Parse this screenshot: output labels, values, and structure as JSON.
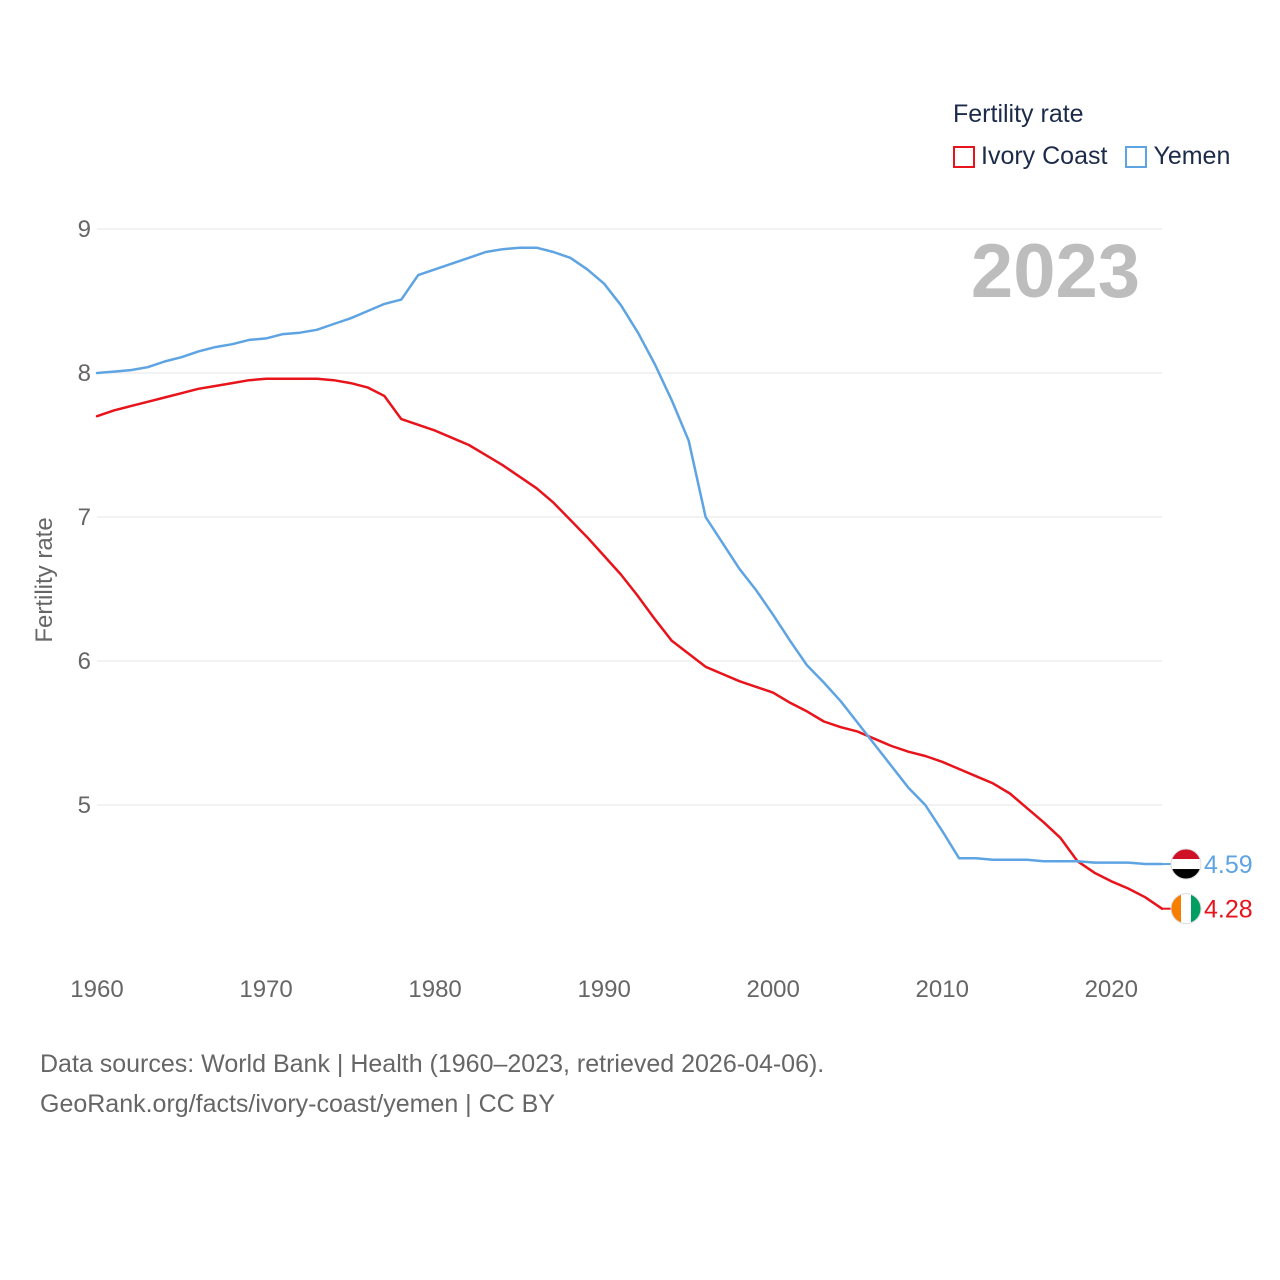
{
  "legend": {
    "title": "Fertility rate",
    "items": [
      {
        "label": "Ivory Coast",
        "color": "#e8141c"
      },
      {
        "label": "Yemen",
        "color": "#5ea4e3"
      }
    ]
  },
  "year_label": "2023",
  "footer": {
    "line1": "Data sources: World Bank | Health (1960–2023, retrieved 2026-04-06).",
    "line2": "GeoRank.org/facts/ivory-coast/yemen | CC BY"
  },
  "colors": {
    "ivory_coast": "#e8141c",
    "yemen": "#5ea4e3",
    "grid": "#e6e6e6",
    "axis_text": "#666666"
  },
  "chart_data": {
    "type": "line",
    "title": "",
    "xlabel": "",
    "ylabel": "Fertility rate",
    "xlim": [
      1960,
      2023
    ],
    "ylim": [
      4,
      9
    ],
    "x_ticks": [
      "1960",
      "1970",
      "1980",
      "1990",
      "2000",
      "2010",
      "2020"
    ],
    "y_ticks": [
      "5",
      "6",
      "7",
      "8",
      "9"
    ],
    "x": [
      1960,
      1961,
      1962,
      1963,
      1964,
      1965,
      1966,
      1967,
      1968,
      1969,
      1970,
      1971,
      1972,
      1973,
      1974,
      1975,
      1976,
      1977,
      1978,
      1979,
      1980,
      1981,
      1982,
      1983,
      1984,
      1985,
      1986,
      1987,
      1988,
      1989,
      1990,
      1991,
      1992,
      1993,
      1994,
      1995,
      1996,
      1997,
      1998,
      1999,
      2000,
      2001,
      2002,
      2003,
      2004,
      2005,
      2006,
      2007,
      2008,
      2009,
      2010,
      2011,
      2012,
      2013,
      2014,
      2015,
      2016,
      2017,
      2018,
      2019,
      2020,
      2021,
      2022,
      2023
    ],
    "series": [
      {
        "name": "Ivory Coast",
        "color": "#e8141c",
        "end_label": "4.28",
        "values": [
          7.7,
          7.74,
          7.77,
          7.8,
          7.83,
          7.86,
          7.89,
          7.91,
          7.93,
          7.95,
          7.96,
          7.96,
          7.96,
          7.96,
          7.95,
          7.93,
          7.9,
          7.84,
          7.68,
          7.64,
          7.6,
          7.55,
          7.5,
          7.43,
          7.36,
          7.28,
          7.2,
          7.1,
          6.98,
          6.86,
          6.73,
          6.6,
          6.45,
          6.29,
          6.14,
          6.05,
          5.96,
          5.91,
          5.86,
          5.82,
          5.78,
          5.71,
          5.65,
          5.58,
          5.54,
          5.51,
          5.46,
          5.41,
          5.37,
          5.34,
          5.3,
          5.25,
          5.2,
          5.15,
          5.08,
          4.98,
          4.88,
          4.77,
          4.61,
          4.53,
          4.47,
          4.42,
          4.36,
          4.28
        ]
      },
      {
        "name": "Yemen",
        "color": "#5ea4e3",
        "end_label": "4.59",
        "values": [
          8.0,
          8.01,
          8.02,
          8.04,
          8.08,
          8.11,
          8.15,
          8.18,
          8.2,
          8.23,
          8.24,
          8.27,
          8.28,
          8.3,
          8.34,
          8.38,
          8.43,
          8.48,
          8.51,
          8.68,
          8.72,
          8.76,
          8.8,
          8.84,
          8.86,
          8.87,
          8.87,
          8.84,
          8.8,
          8.72,
          8.62,
          8.47,
          8.28,
          8.06,
          7.81,
          7.53,
          7.0,
          6.82,
          6.64,
          6.49,
          6.32,
          6.14,
          5.97,
          5.85,
          5.72,
          5.57,
          5.42,
          5.27,
          5.12,
          5.0,
          4.82,
          4.63,
          4.63,
          4.62,
          4.62,
          4.62,
          4.61,
          4.61,
          4.61,
          4.6,
          4.6,
          4.6,
          4.59,
          4.59
        ]
      }
    ]
  }
}
